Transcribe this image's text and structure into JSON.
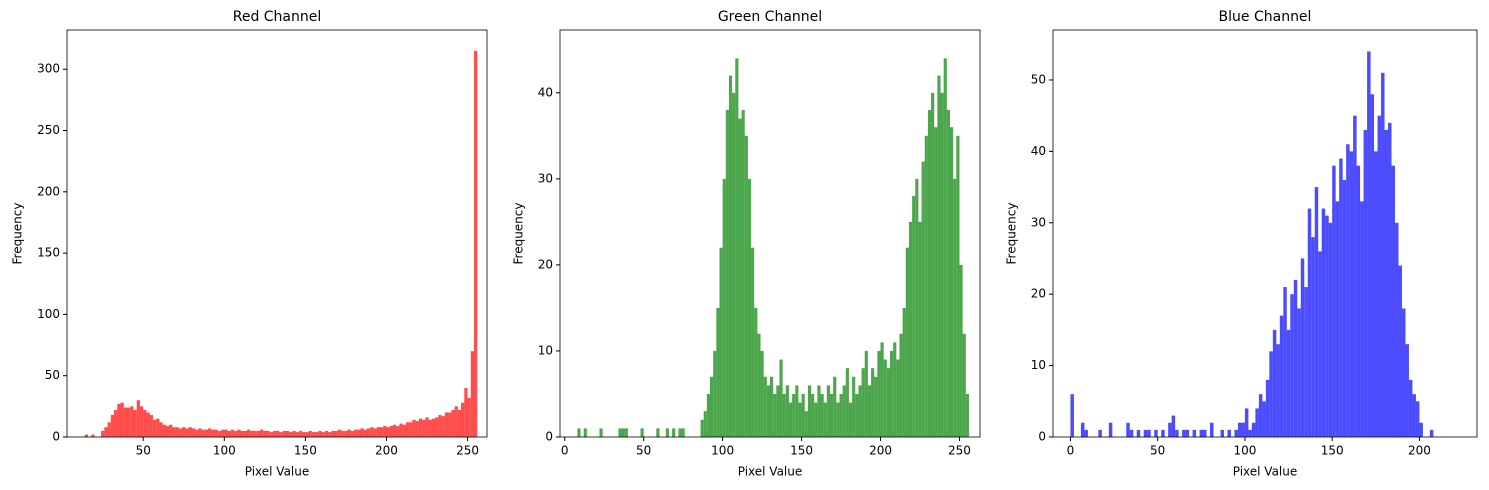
{
  "chart_data": [
    {
      "type": "histogram",
      "title": "Red Channel",
      "x_label": "Pixel Value",
      "y_label": "Frequency",
      "color": "#ff0000",
      "alpha": 0.7,
      "bins": [
        14,
        16,
        18,
        20,
        22,
        24,
        26,
        28,
        30,
        32,
        34,
        36,
        38,
        40,
        42,
        44,
        46,
        48,
        50,
        52,
        54,
        56,
        58,
        60,
        62,
        64,
        66,
        68,
        70,
        72,
        74,
        76,
        78,
        80,
        82,
        84,
        86,
        88,
        90,
        92,
        94,
        96,
        98,
        100,
        102,
        104,
        106,
        108,
        110,
        112,
        114,
        116,
        118,
        120,
        122,
        124,
        126,
        128,
        130,
        132,
        134,
        136,
        138,
        140,
        142,
        144,
        146,
        148,
        150,
        152,
        154,
        156,
        158,
        160,
        162,
        164,
        166,
        168,
        170,
        172,
        174,
        176,
        178,
        180,
        182,
        184,
        186,
        188,
        190,
        192,
        194,
        196,
        198,
        200,
        202,
        204,
        206,
        208,
        210,
        212,
        214,
        216,
        218,
        220,
        222,
        224,
        226,
        228,
        230,
        232,
        234,
        236,
        238,
        240,
        242,
        244,
        246,
        248,
        250,
        252,
        254,
        256
      ],
      "values": [
        2,
        0,
        2,
        0,
        0,
        5,
        8,
        12,
        18,
        22,
        27,
        28,
        24,
        24,
        25,
        22,
        30,
        25,
        22,
        20,
        18,
        14,
        15,
        12,
        10,
        9,
        10,
        8,
        8,
        7,
        8,
        7,
        8,
        7,
        6,
        7,
        6,
        6,
        7,
        6,
        6,
        5,
        6,
        6,
        5,
        6,
        5,
        6,
        5,
        5,
        6,
        5,
        5,
        5,
        6,
        5,
        5,
        4,
        5,
        5,
        4,
        5,
        5,
        4,
        5,
        4,
        5,
        4,
        4,
        5,
        4,
        4,
        5,
        4,
        5,
        4,
        5,
        5,
        6,
        5,
        5,
        6,
        5,
        6,
        6,
        7,
        6,
        7,
        8,
        7,
        8,
        8,
        9,
        8,
        9,
        10,
        9,
        11,
        10,
        12,
        12,
        14,
        13,
        15,
        14,
        16,
        14,
        15,
        16,
        18,
        17,
        20,
        20,
        22,
        25,
        22,
        28,
        40,
        32,
        70,
        315
      ],
      "xlim": [
        3,
        262
      ],
      "xticks": [
        50,
        100,
        150,
        200,
        250
      ],
      "ylim": [
        0,
        332
      ],
      "yticks": [
        0,
        50,
        100,
        150,
        200,
        250,
        300
      ]
    },
    {
      "type": "histogram",
      "title": "Green Channel",
      "x_label": "Pixel Value",
      "y_label": "Frequency",
      "color": "#008000",
      "alpha": 0.7,
      "bins": [
        4,
        6,
        8,
        10,
        12,
        14,
        16,
        18,
        20,
        22,
        24,
        26,
        28,
        30,
        32,
        34,
        36,
        38,
        40,
        42,
        44,
        46,
        48,
        50,
        52,
        54,
        56,
        58,
        60,
        62,
        64,
        66,
        68,
        70,
        72,
        74,
        76,
        78,
        80,
        82,
        84,
        86,
        88,
        90,
        92,
        94,
        96,
        98,
        100,
        102,
        104,
        106,
        108,
        110,
        112,
        114,
        116,
        118,
        120,
        122,
        124,
        126,
        128,
        130,
        132,
        134,
        136,
        138,
        140,
        142,
        144,
        146,
        148,
        150,
        152,
        154,
        156,
        158,
        160,
        162,
        164,
        166,
        168,
        170,
        172,
        174,
        176,
        178,
        180,
        182,
        184,
        186,
        188,
        190,
        192,
        194,
        196,
        198,
        200,
        202,
        204,
        206,
        208,
        210,
        212,
        214,
        216,
        218,
        220,
        222,
        224,
        226,
        228,
        230,
        232,
        234,
        236,
        238,
        240,
        242,
        244,
        246,
        248,
        250,
        252,
        254,
        256
      ],
      "values": [
        0,
        0,
        1,
        0,
        1,
        0,
        0,
        0,
        0,
        1,
        0,
        0,
        0,
        0,
        0,
        1,
        1,
        1,
        0,
        0,
        0,
        0,
        1,
        0,
        0,
        0,
        0,
        1,
        0,
        0,
        1,
        0,
        1,
        0,
        1,
        1,
        0,
        0,
        0,
        0,
        0,
        2,
        3,
        5,
        7,
        10,
        15,
        22,
        30,
        38,
        42,
        40,
        44,
        37,
        38,
        35,
        30,
        22,
        15,
        12,
        10,
        7,
        6,
        7,
        5,
        6,
        9,
        5,
        6,
        4,
        5,
        6,
        4,
        5,
        3,
        6,
        5,
        4,
        6,
        5,
        4,
        6,
        5,
        7,
        4,
        5,
        6,
        8,
        4,
        7,
        5,
        6,
        8,
        10,
        6,
        8,
        7,
        10,
        11,
        9,
        8,
        10,
        11,
        9,
        12,
        15,
        22,
        25,
        28,
        30,
        25,
        32,
        35,
        38,
        40,
        36,
        42,
        40,
        44,
        38,
        36,
        30,
        35,
        20,
        12,
        5
      ],
      "xlim": [
        -3,
        263
      ],
      "xticks": [
        0,
        50,
        100,
        150,
        200,
        250
      ],
      "ylim": [
        0,
        47.3
      ],
      "yticks": [
        0,
        10,
        20,
        30,
        40
      ]
    },
    {
      "type": "histogram",
      "title": "Blue Channel",
      "x_label": "Pixel Value",
      "y_label": "Frequency",
      "color": "#0000ff",
      "alpha": 0.7,
      "bins": [
        0,
        2,
        4,
        6,
        8,
        10,
        12,
        14,
        16,
        18,
        20,
        22,
        24,
        26,
        28,
        30,
        32,
        34,
        36,
        38,
        40,
        42,
        44,
        46,
        48,
        50,
        52,
        54,
        56,
        58,
        60,
        62,
        64,
        66,
        68,
        70,
        72,
        74,
        76,
        78,
        80,
        82,
        84,
        86,
        88,
        90,
        92,
        94,
        96,
        98,
        100,
        102,
        104,
        106,
        108,
        110,
        112,
        114,
        116,
        118,
        120,
        122,
        124,
        126,
        128,
        130,
        132,
        134,
        136,
        138,
        140,
        142,
        144,
        146,
        148,
        150,
        152,
        154,
        156,
        158,
        160,
        162,
        164,
        166,
        168,
        170,
        172,
        174,
        176,
        178,
        180,
        182,
        184,
        186,
        188,
        190,
        192,
        194,
        196,
        198,
        200,
        202,
        204,
        206,
        208
      ],
      "values": [
        6,
        0,
        0,
        2,
        1,
        0,
        0,
        0,
        1,
        0,
        0,
        2,
        0,
        0,
        0,
        0,
        2,
        1,
        0,
        1,
        0,
        1,
        1,
        0,
        1,
        0,
        1,
        0,
        2,
        3,
        1,
        0,
        1,
        1,
        0,
        1,
        0,
        1,
        1,
        0,
        2,
        0,
        0,
        1,
        0,
        1,
        0,
        1,
        2,
        2,
        4,
        1,
        2,
        4,
        6,
        5,
        8,
        12,
        15,
        13,
        17,
        21,
        15,
        20,
        22,
        18,
        25,
        21,
        32,
        28,
        35,
        26,
        32,
        31,
        30,
        38,
        33,
        39,
        36,
        41,
        40,
        45,
        38,
        33,
        43,
        54,
        48,
        40,
        45,
        51,
        43,
        44,
        38,
        30,
        24,
        18,
        13,
        8,
        6,
        5,
        2,
        0,
        0,
        1
      ],
      "xlim": [
        -10,
        233
      ],
      "xticks": [
        0,
        50,
        100,
        150,
        200
      ],
      "ylim": [
        0,
        57
      ],
      "yticks": [
        0,
        10,
        20,
        30,
        40,
        50
      ]
    }
  ]
}
